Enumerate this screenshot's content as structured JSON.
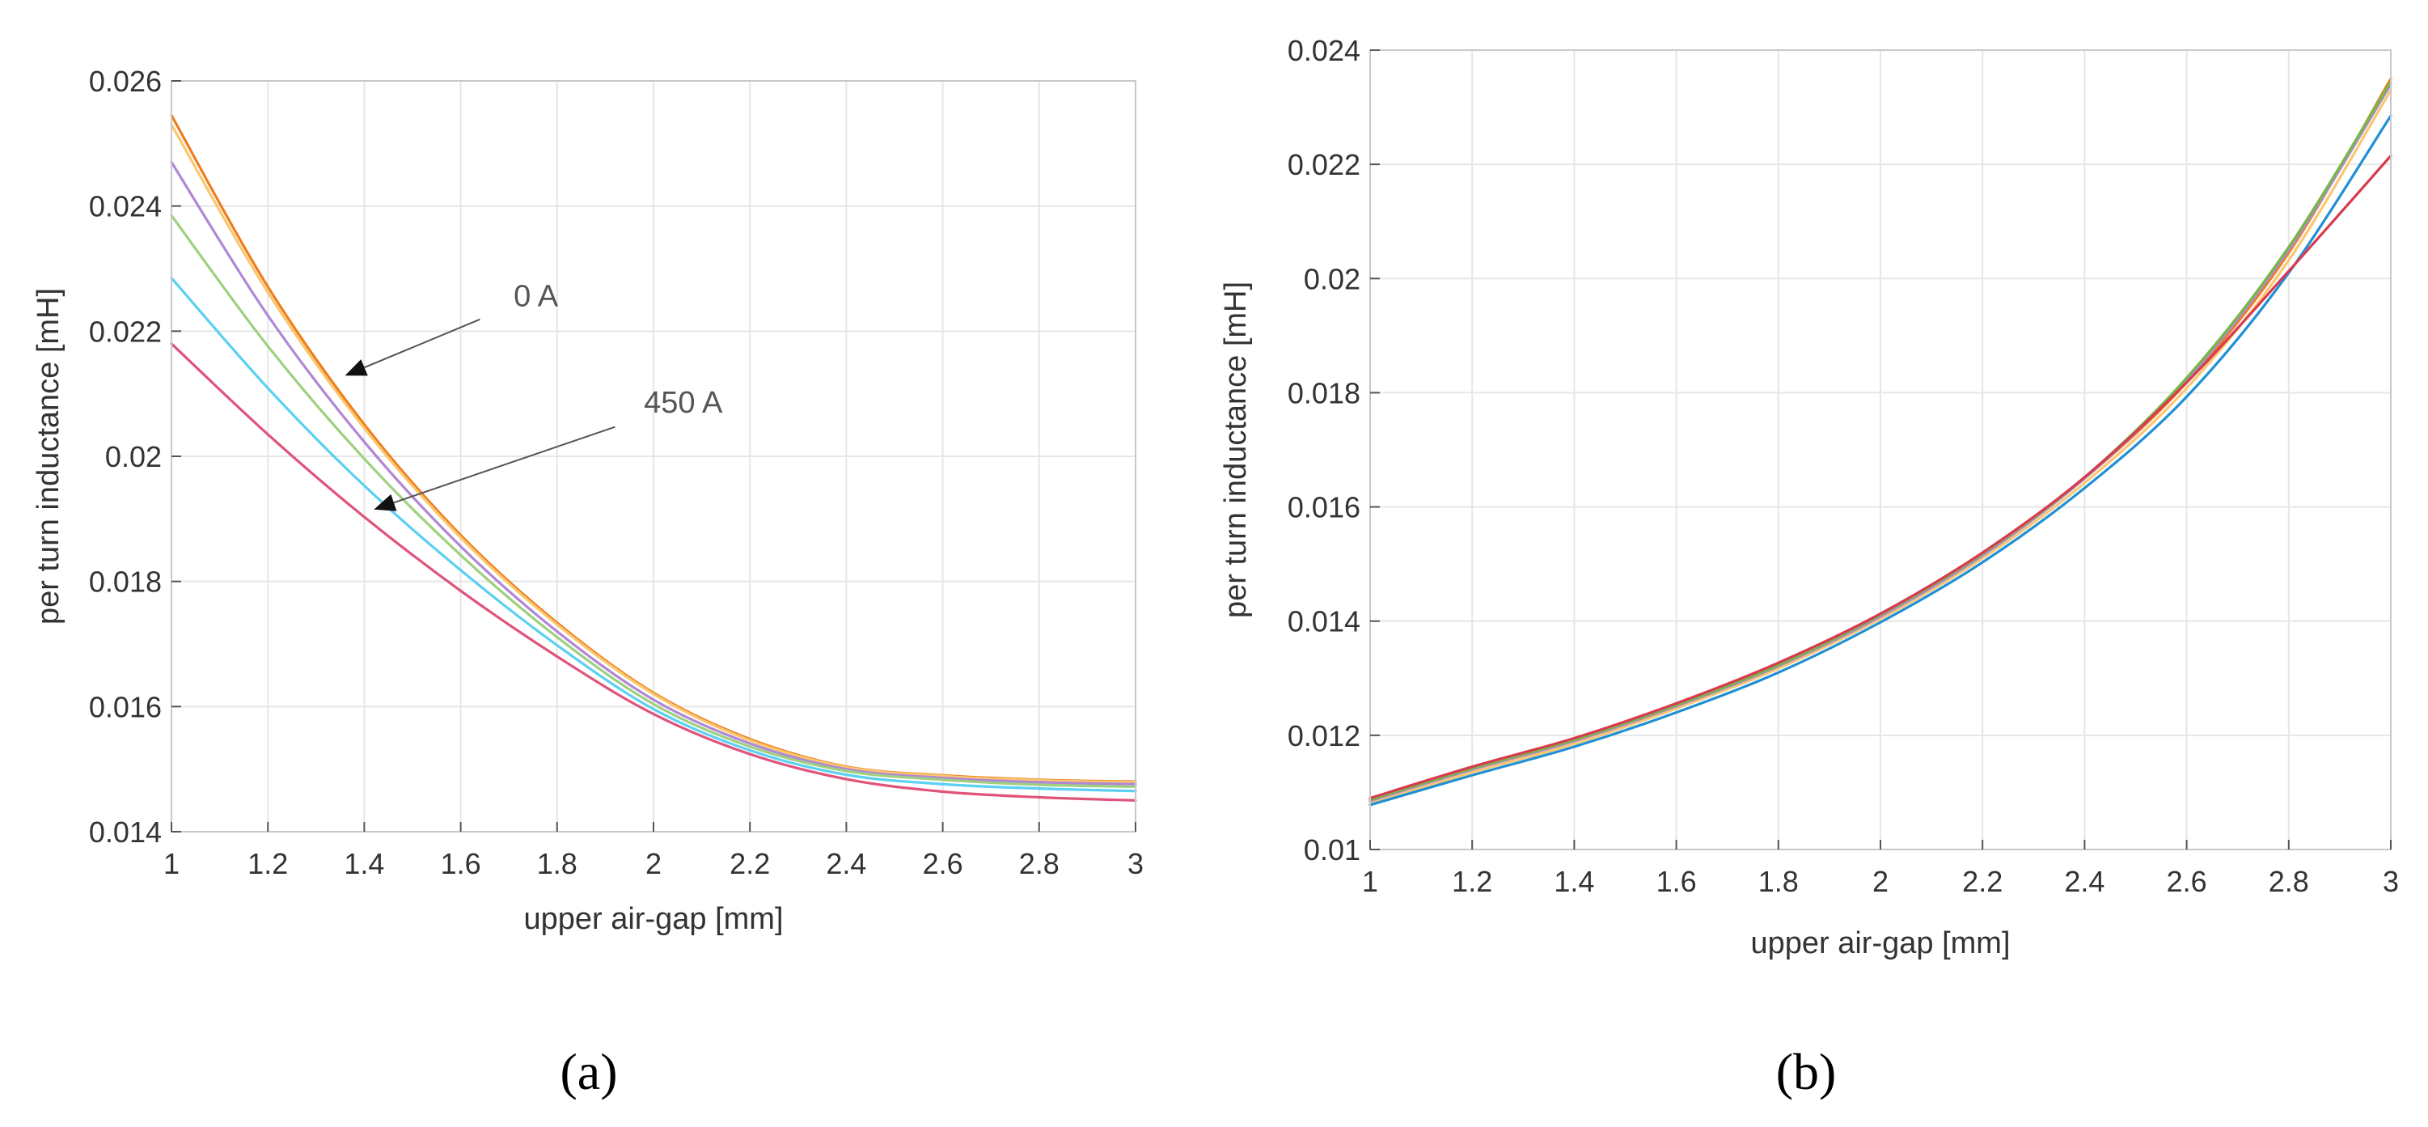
{
  "chart_data": [
    {
      "id": "a",
      "type": "line",
      "panel_label": "(a)",
      "panel_letter": "a",
      "xlabel": "upper air-gap [mm]",
      "ylabel": "per turn inductance [mH]",
      "xlim": [
        1,
        3
      ],
      "ylim": [
        0.014,
        0.026
      ],
      "xticks": [
        1,
        1.2,
        1.4,
        1.6,
        1.8,
        2,
        2.2,
        2.4,
        2.6,
        2.8,
        3
      ],
      "xtick_labels": [
        "1",
        "1.2",
        "1.4",
        "1.6",
        "1.8",
        "2",
        "2.2",
        "2.4",
        "2.6",
        "2.8",
        "3"
      ],
      "yticks": [
        0.014,
        0.016,
        0.018,
        0.02,
        0.022,
        0.024,
        0.026
      ],
      "ytick_labels": [
        "0.014",
        "0.016",
        "0.018",
        "0.02",
        "0.022",
        "0.024",
        "0.026"
      ],
      "grid": true,
      "x": [
        1,
        1.2,
        1.4,
        1.6,
        1.8,
        2,
        2.2,
        2.4,
        2.6,
        2.8,
        3
      ],
      "series": [
        {
          "color": "#f07d1c",
          "values": [
            0.02545,
            0.02271,
            0.02051,
            0.01874,
            0.01734,
            0.01622,
            0.01548,
            0.01504,
            0.0149,
            0.01483,
            0.0148
          ]
        },
        {
          "color": "#f8c870",
          "values": [
            0.0253,
            0.02262,
            0.02045,
            0.0187,
            0.01731,
            0.0162,
            0.01546,
            0.01503,
            0.01489,
            0.01482,
            0.01479
          ]
        },
        {
          "color": "#b187d6",
          "values": [
            0.0247,
            0.02225,
            0.02023,
            0.01856,
            0.0172,
            0.01611,
            0.01541,
            0.015,
            0.01486,
            0.01479,
            0.01476
          ]
        },
        {
          "color": "#9fd07e",
          "values": [
            0.02385,
            0.02176,
            0.01996,
            0.01842,
            0.01711,
            0.01604,
            0.01536,
            0.01497,
            0.01483,
            0.01475,
            0.01472
          ]
        },
        {
          "color": "#5bd0f2",
          "values": [
            0.02285,
            0.02109,
            0.01953,
            0.01818,
            0.01698,
            0.01596,
            0.0153,
            0.01491,
            0.01476,
            0.01469,
            0.01465
          ]
        },
        {
          "color": "#e0537a",
          "values": [
            0.0218,
            0.02035,
            0.01903,
            0.01785,
            0.0168,
            0.01588,
            0.01524,
            0.01484,
            0.01464,
            0.01455,
            0.0145
          ]
        }
      ],
      "annotations": [
        {
          "text": "0 A",
          "text_x": 1.71,
          "text_y": 0.0224,
          "tail_x": 1.64,
          "tail_y": 0.02219,
          "head_x": 1.36,
          "head_y": 0.02129
        },
        {
          "text": "450 A",
          "text_x": 1.98,
          "text_y": 0.0207,
          "tail_x": 1.92,
          "tail_y": 0.02047,
          "head_x": 1.42,
          "head_y": 0.01915
        }
      ]
    },
    {
      "id": "b",
      "type": "line",
      "panel_label": "(b)",
      "panel_letter": "b",
      "xlabel": "upper air-gap [mm]",
      "ylabel": "per turn inductance [mH]",
      "xlim": [
        1,
        3
      ],
      "ylim": [
        0.01,
        0.024
      ],
      "xticks": [
        1,
        1.2,
        1.4,
        1.6,
        1.8,
        2,
        2.2,
        2.4,
        2.6,
        2.8,
        3
      ],
      "xtick_labels": [
        "1",
        "1.2",
        "1.4",
        "1.6",
        "1.8",
        "2",
        "2.2",
        "2.4",
        "2.6",
        "2.8",
        "3"
      ],
      "yticks": [
        0.01,
        0.012,
        0.014,
        0.016,
        0.018,
        0.02,
        0.022,
        0.024
      ],
      "ytick_labels": [
        "0.01",
        "0.012",
        "0.014",
        "0.016",
        "0.018",
        "0.02",
        "0.022",
        "0.024"
      ],
      "grid": true,
      "x": [
        1,
        1.2,
        1.4,
        1.6,
        1.8,
        2,
        2.2,
        2.4,
        2.6,
        2.8,
        3
      ],
      "series": [
        {
          "color": "#f07d1c",
          "values": [
            0.01085,
            0.0114,
            0.0119,
            0.01252,
            0.01322,
            0.0141,
            0.01517,
            0.0165,
            0.01818,
            0.02045,
            0.0235
          ]
        },
        {
          "color": "#f8c870",
          "values": [
            0.0108,
            0.01135,
            0.01185,
            0.01247,
            0.01317,
            0.01404,
            0.0151,
            0.01642,
            0.01808,
            0.02032,
            0.0233
          ]
        },
        {
          "color": "#b187d6",
          "values": [
            0.01085,
            0.0114,
            0.0119,
            0.01251,
            0.01321,
            0.01408,
            0.01515,
            0.0165,
            0.01822,
            0.0205,
            0.0234
          ]
        },
        {
          "color": "#77b844",
          "values": [
            0.01087,
            0.01142,
            0.01192,
            0.01253,
            0.01323,
            0.01411,
            0.01518,
            0.01652,
            0.01826,
            0.02055,
            0.02345
          ]
        },
        {
          "color": "#1f8fd6",
          "values": [
            0.01078,
            0.0113,
            0.0118,
            0.0124,
            0.0131,
            0.01398,
            0.01503,
            0.01633,
            0.01793,
            0.0201,
            0.02285
          ]
        },
        {
          "color": "#d83a50",
          "values": [
            0.0109,
            0.01145,
            0.01195,
            0.01256,
            0.01327,
            0.01413,
            0.0152,
            0.01652,
            0.01818,
            0.02013,
            0.02215
          ]
        }
      ]
    }
  ]
}
